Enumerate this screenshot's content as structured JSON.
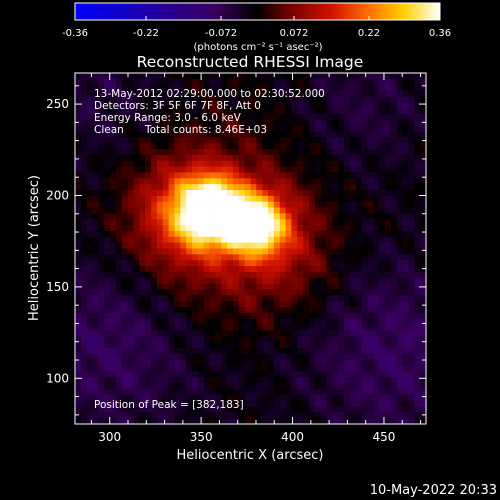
{
  "figure": {
    "title": "Reconstructed RHESSI Image",
    "footer_timestamp": "10-May-2022 20:33",
    "annotations": {
      "time_range": "13-May-2012 02:29:00.000 to 02:30:52.000",
      "detectors": "Detectors: 3F 5F 6F 7F 8F, Att 0",
      "energy_range": "Energy Range: 3.0 - 6.0 keV",
      "method": "Clean",
      "total_counts": "Total counts: 8.46E+03",
      "peak_position": "Position of Peak = [382,183]"
    },
    "colorbar": {
      "units_label": "(photons cm⁻² s⁻¹ asec⁻²)",
      "range": [
        -0.36,
        0.36
      ],
      "tick_labels": [
        "-0.36",
        "-0.22",
        "-0.072",
        "0.072",
        "0.22",
        "0.36"
      ],
      "colormap_stops": [
        {
          "v": 0.0,
          "color": "#0000ff"
        },
        {
          "v": 0.38,
          "color": "#3a0060"
        },
        {
          "v": 0.5,
          "color": "#000000"
        },
        {
          "v": 0.58,
          "color": "#6b0000"
        },
        {
          "v": 0.7,
          "color": "#d01000"
        },
        {
          "v": 0.8,
          "color": "#ff6a00"
        },
        {
          "v": 0.9,
          "color": "#ffd000"
        },
        {
          "v": 1.0,
          "color": "#ffffff"
        }
      ]
    }
  },
  "chart_data": {
    "type": "heatmap",
    "title": "Reconstructed RHESSI Image",
    "xlabel": "Heliocentric X (arcsec)",
    "ylabel": "Heliocentric Y (arcsec)",
    "xlim": [
      281,
      473
    ],
    "ylim": [
      75,
      267
    ],
    "x_ticks": [
      300,
      350,
      400,
      450
    ],
    "y_ticks": [
      100,
      150,
      200,
      250
    ],
    "value_range": [
      -0.36,
      0.36
    ],
    "peak": {
      "x": 382,
      "y": 183
    },
    "bright_sources": [
      {
        "x": 355,
        "y": 192,
        "amp": 0.36,
        "sigma": 12
      },
      {
        "x": 381,
        "y": 184,
        "amp": 0.31,
        "sigma": 12
      },
      {
        "x": 340,
        "y": 190,
        "amp": 0.14,
        "sigma": 20
      },
      {
        "x": 365,
        "y": 178,
        "amp": 0.1,
        "sigma": 34
      },
      {
        "x": 400,
        "y": 165,
        "amp": 0.05,
        "sigma": 18
      }
    ],
    "negative_regions": [
      {
        "x": 300,
        "y": 120,
        "amp": -0.08,
        "sigma": 40
      },
      {
        "x": 455,
        "y": 115,
        "amp": -0.08,
        "sigma": 40
      },
      {
        "x": 290,
        "y": 255,
        "amp": -0.05,
        "sigma": 30
      },
      {
        "x": 440,
        "y": 250,
        "amp": -0.05,
        "sigma": 30
      }
    ]
  }
}
